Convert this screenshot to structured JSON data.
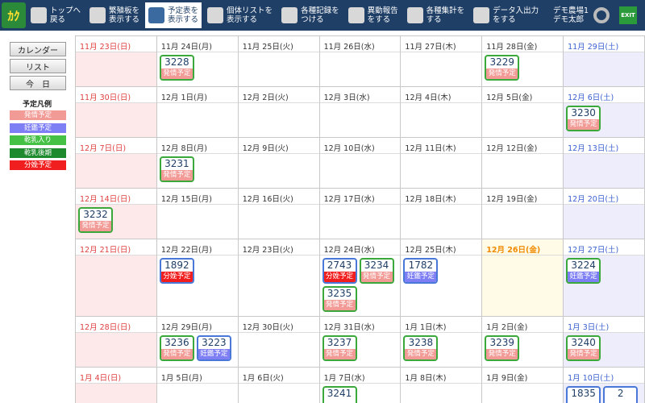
{
  "toolbar": {
    "logo": "ｶｸ",
    "items": [
      {
        "lines": [
          "トップへ",
          "戻る"
        ]
      },
      {
        "lines": [
          "繁殖板を",
          "表示する"
        ]
      },
      {
        "lines": [
          "予定表を",
          "表示する"
        ],
        "active": true
      },
      {
        "lines": [
          "個体リストを",
          "表示する"
        ]
      },
      {
        "lines": [
          "各種記録を",
          "つける"
        ]
      },
      {
        "lines": [
          "異動報告",
          "をする"
        ]
      },
      {
        "lines": [
          "各種集計を",
          "する"
        ]
      },
      {
        "lines": [
          "データ入出力",
          "をする"
        ]
      }
    ],
    "user": [
      "デモ農場1",
      "デモ太郎"
    ],
    "exit": "EXIT"
  },
  "sidebar": {
    "buttons": [
      "カレンダー",
      "リスト",
      "今　日"
    ],
    "legend_title": "予定凡例",
    "legend": [
      {
        "label": "発情予定",
        "color": "#f29a96"
      },
      {
        "label": "妊鑑予定",
        "color": "#7f7ff5"
      },
      {
        "label": "乾乳入り",
        "color": "#45c245"
      },
      {
        "label": "乾乳後期",
        "color": "#1e8a2e"
      },
      {
        "label": "分娩予定",
        "color": "#f01e1e"
      }
    ]
  },
  "calendar": {
    "weeks": [
      {
        "days": [
          {
            "date": "11月 23日(日)"
          },
          {
            "date": "11月 24日(月)",
            "events": [
              {
                "id": "3228",
                "label": "発情予定",
                "frame": "#3aa83a"
              }
            ]
          },
          {
            "date": "11月 25日(火)"
          },
          {
            "date": "11月 26日(水)"
          },
          {
            "date": "11月 27日(木)"
          },
          {
            "date": "11月 28日(金)",
            "events": [
              {
                "id": "3229",
                "label": "発情予定",
                "frame": "#3aa83a"
              }
            ]
          },
          {
            "date": "11月 29日(土)"
          }
        ]
      },
      {
        "days": [
          {
            "date": "11月 30日(日)"
          },
          {
            "date": "12月 1日(月)"
          },
          {
            "date": "12月 2日(火)"
          },
          {
            "date": "12月 3日(水)"
          },
          {
            "date": "12月 4日(木)"
          },
          {
            "date": "12月 5日(金)"
          },
          {
            "date": "12月 6日(土)",
            "events": [
              {
                "id": "3230",
                "label": "発情予定",
                "frame": "#3aa83a"
              }
            ]
          }
        ]
      },
      {
        "days": [
          {
            "date": "12月 7日(日)"
          },
          {
            "date": "12月 8日(月)",
            "events": [
              {
                "id": "3231",
                "label": "発情予定",
                "frame": "#3aa83a"
              }
            ]
          },
          {
            "date": "12月 9日(火)"
          },
          {
            "date": "12月 10日(水)"
          },
          {
            "date": "12月 11日(木)"
          },
          {
            "date": "12月 12日(金)"
          },
          {
            "date": "12月 13日(土)"
          }
        ]
      },
      {
        "days": [
          {
            "date": "12月 14日(日)",
            "events": [
              {
                "id": "3232",
                "label": "発情予定",
                "frame": "#3aa83a"
              }
            ]
          },
          {
            "date": "12月 15日(月)"
          },
          {
            "date": "12月 16日(火)"
          },
          {
            "date": "12月 17日(水)"
          },
          {
            "date": "12月 18日(木)"
          },
          {
            "date": "12月 19日(金)"
          },
          {
            "date": "12月 20日(土)"
          }
        ]
      },
      {
        "days": [
          {
            "date": "12月 21日(日)"
          },
          {
            "date": "12月 22日(月)",
            "events": [
              {
                "id": "1892",
                "label": "分娩予定",
                "frame": "#4a78d8"
              }
            ]
          },
          {
            "date": "12月 23日(火)"
          },
          {
            "date": "12月 24日(水)",
            "events": [
              {
                "id": "2743",
                "label": "分娩予定",
                "frame": "#4a78d8"
              },
              {
                "id": "3234",
                "label": "発情予定",
                "frame": "#3aa83a"
              },
              {
                "id": "3235",
                "label": "発情予定",
                "frame": "#3aa83a"
              }
            ]
          },
          {
            "date": "12月 25日(木)",
            "events": [
              {
                "id": "1782",
                "label": "妊鑑予定",
                "frame": "#4a78d8"
              }
            ]
          },
          {
            "date": "12月 26日(金)",
            "today": true
          },
          {
            "date": "12月 27日(土)",
            "events": [
              {
                "id": "3224",
                "label": "妊鑑予定",
                "frame": "#3aa83a"
              }
            ]
          }
        ]
      },
      {
        "days": [
          {
            "date": "12月 28日(日)"
          },
          {
            "date": "12月 29日(月)",
            "events": [
              {
                "id": "3236",
                "label": "発情予定",
                "frame": "#3aa83a"
              },
              {
                "id": "3223",
                "label": "妊鑑予定",
                "frame": "#4a78d8"
              }
            ]
          },
          {
            "date": "12月 30日(火)"
          },
          {
            "date": "12月 31日(水)",
            "events": [
              {
                "id": "3237",
                "label": "発情予定",
                "frame": "#3aa83a"
              }
            ]
          },
          {
            "date": "1月 1日(木)",
            "events": [
              {
                "id": "3238",
                "label": "発情予定",
                "frame": "#3aa83a"
              }
            ]
          },
          {
            "date": "1月 2日(金)",
            "events": [
              {
                "id": "3239",
                "label": "発情予定",
                "frame": "#3aa83a"
              }
            ]
          },
          {
            "date": "1月 3日(土)",
            "events": [
              {
                "id": "3240",
                "label": "発情予定",
                "frame": "#3aa83a"
              }
            ]
          }
        ]
      },
      {
        "days": [
          {
            "date": "1月 4日(日)"
          },
          {
            "date": "1月 5日(月)"
          },
          {
            "date": "1月 6日(火)"
          },
          {
            "date": "1月 7日(水)",
            "events": [
              {
                "id": "3241",
                "frame": "#3aa83a"
              }
            ]
          },
          {
            "date": "1月 8日(木)"
          },
          {
            "date": "1月 9日(金)"
          },
          {
            "date": "1月 10日(土)",
            "events": [
              {
                "id": "1835",
                "frame": "#4a78d8"
              },
              {
                "id": "2",
                "frame": "#4a78d8"
              }
            ]
          }
        ]
      }
    ]
  }
}
